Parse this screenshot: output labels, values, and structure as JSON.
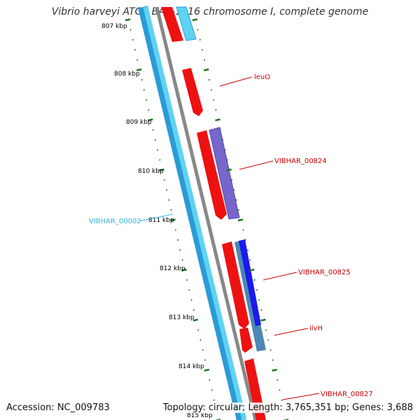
{
  "title": "Vibrio harveyi ATCC BAA-1116 chromosome I, complete genome",
  "accession": "Accession: NC_009783",
  "summary": "Topology: circular; Length: 3,765,351 bp; Genes: 3,688",
  "ticks": [
    "807 kbp",
    "808 kbp",
    "809 kbp",
    "810 kbp",
    "811 kbp",
    "812 kbp",
    "813 kbp",
    "814 kbp",
    "815 kbp"
  ],
  "gene_labels": [
    {
      "text": "leuO",
      "color": "#cc0000"
    },
    {
      "text": "VIBHAR_00824",
      "color": "#cc0000"
    },
    {
      "text": "VIBHAR_00825",
      "color": "#cc0000"
    },
    {
      "text": "ilvH",
      "color": "#cc0000"
    },
    {
      "text": "VIBHAR_00827",
      "color": "#cc0000"
    },
    {
      "text": "VIBHAR_00002",
      "color": "#33b5dd"
    }
  ],
  "colors": {
    "forward_gene": "#ee1111",
    "reverse_gene": "#7766cc",
    "dark_blue_gene": "#1a1aee",
    "steel_gene": "#4d87b3",
    "backbone": "#888888",
    "cyan_outer": "#2a9bd6",
    "cyan_inner": "#5fd3f2",
    "tick_green": "#1a7a1a"
  }
}
